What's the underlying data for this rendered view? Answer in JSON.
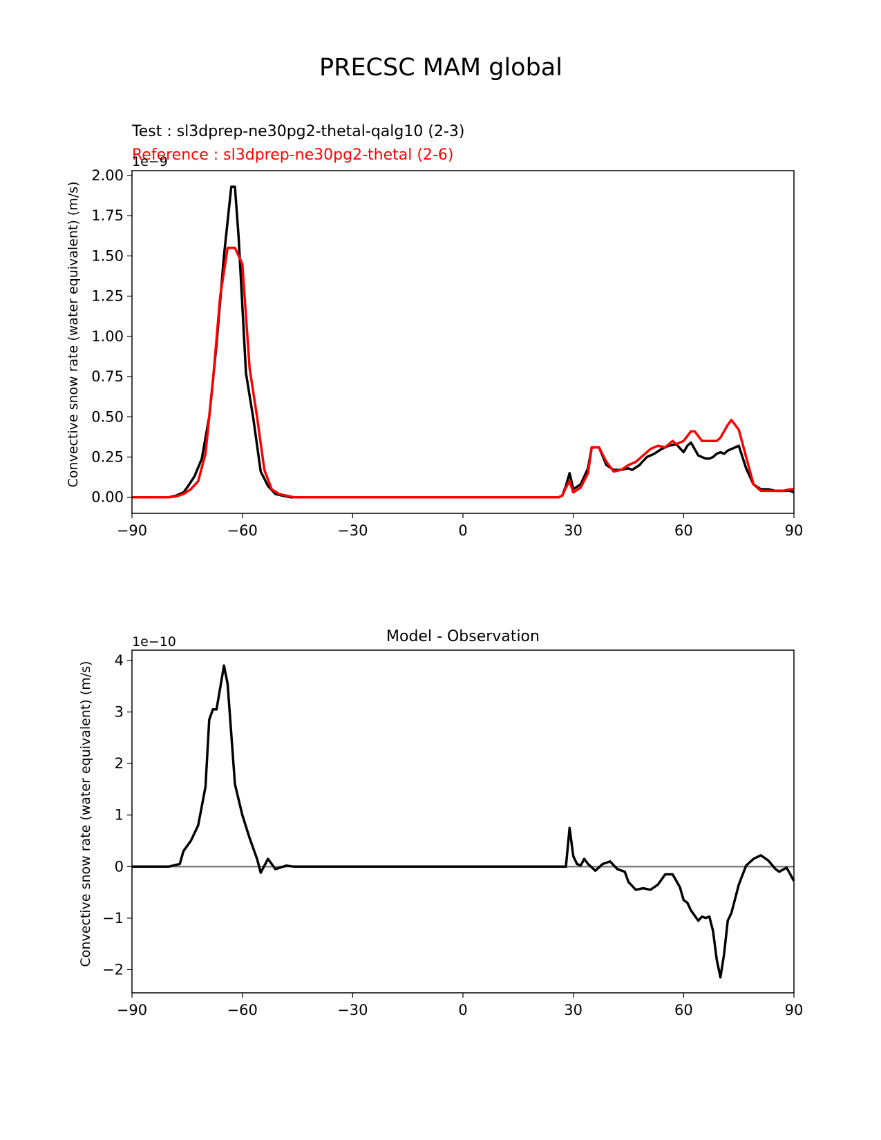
{
  "suptitle": "PRECSC MAM global",
  "chart_data": [
    {
      "type": "line",
      "test_label": "Test : sl3dprep-ne30pg2-thetal-qalg10 (2-3)",
      "reference_label": "Reference : sl3dprep-ne30pg2-thetal (2-6)",
      "offset_text": "1e−9",
      "ylabel": "Convective snow rate (water equivalent) (m/s)",
      "xlim": [
        -90,
        90
      ],
      "ylim": [
        -0.1,
        2.03
      ],
      "xticks": [
        -90,
        -60,
        -30,
        0,
        30,
        60,
        90
      ],
      "xtick_labels": [
        "−90",
        "−60",
        "−30",
        "0",
        "30",
        "60",
        "90"
      ],
      "yticks": [
        0,
        0.25,
        0.5,
        0.75,
        1.0,
        1.25,
        1.5,
        1.75,
        2.0
      ],
      "ytick_labels": [
        "0.00",
        "0.25",
        "0.50",
        "0.75",
        "1.00",
        "1.25",
        "1.50",
        "1.75",
        "2.00"
      ],
      "colors": {
        "test": "#000000",
        "reference": "#ff0000"
      },
      "series": [
        {
          "color": "#000000",
          "x": [
            -90,
            -80,
            -78,
            -76,
            -75,
            -73,
            -71,
            -69,
            -67,
            -65,
            -63,
            -62,
            -61,
            -59,
            -57,
            -55,
            -53,
            -51,
            -49,
            -47,
            -45,
            -40,
            0,
            26,
            27,
            28,
            29,
            30,
            32,
            34,
            35,
            37,
            39,
            41,
            43,
            45,
            46,
            48,
            50,
            52,
            54,
            56,
            58,
            60,
            61,
            62,
            64,
            66,
            67,
            68,
            69,
            70,
            71,
            72,
            73,
            75,
            77,
            79,
            81,
            83,
            85,
            87,
            89,
            90
          ],
          "y": [
            0,
            0,
            0.01,
            0.03,
            0.06,
            0.13,
            0.24,
            0.5,
            0.95,
            1.5,
            1.93,
            1.93,
            1.62,
            0.77,
            0.49,
            0.16,
            0.07,
            0.02,
            0.01,
            0,
            0,
            0,
            0,
            0,
            0.01,
            0.07,
            0.15,
            0.05,
            0.08,
            0.18,
            0.31,
            0.31,
            0.2,
            0.17,
            0.17,
            0.18,
            0.17,
            0.2,
            0.25,
            0.27,
            0.3,
            0.32,
            0.33,
            0.28,
            0.32,
            0.34,
            0.26,
            0.24,
            0.24,
            0.25,
            0.27,
            0.28,
            0.27,
            0.29,
            0.3,
            0.32,
            0.18,
            0.08,
            0.05,
            0.05,
            0.04,
            0.04,
            0.04,
            0.03
          ]
        },
        {
          "color": "#ff0000",
          "x": [
            -90,
            -80,
            -78,
            -76,
            -74,
            -72,
            -70,
            -68,
            -66,
            -64,
            -62,
            -60,
            -58,
            -56,
            -54,
            -52,
            -50,
            -48,
            -46,
            -40,
            0,
            26,
            27,
            28,
            29,
            30,
            32,
            34,
            35,
            37,
            39,
            41,
            43,
            45,
            47,
            49,
            51,
            53,
            55,
            57,
            58,
            60,
            62,
            63,
            65,
            67,
            69,
            70,
            72,
            73,
            75,
            77,
            79,
            81,
            83,
            85,
            87,
            89,
            90
          ],
          "y": [
            0,
            0,
            0.005,
            0.02,
            0.05,
            0.1,
            0.27,
            0.72,
            1.25,
            1.55,
            1.55,
            1.45,
            0.8,
            0.5,
            0.17,
            0.05,
            0.02,
            0.01,
            0,
            0,
            0,
            0,
            0.01,
            0.06,
            0.1,
            0.03,
            0.06,
            0.15,
            0.31,
            0.31,
            0.22,
            0.16,
            0.17,
            0.2,
            0.22,
            0.26,
            0.3,
            0.32,
            0.31,
            0.35,
            0.33,
            0.35,
            0.41,
            0.41,
            0.35,
            0.35,
            0.35,
            0.37,
            0.45,
            0.48,
            0.42,
            0.25,
            0.08,
            0.04,
            0.04,
            0.04,
            0.04,
            0.05,
            0.05
          ]
        }
      ]
    },
    {
      "type": "line",
      "title": "Model - Observation",
      "offset_text": "1e−10",
      "ylabel": "Convective snow rate (water equivalent) (m/s)",
      "xlim": [
        -90,
        90
      ],
      "ylim": [
        -2.45,
        4.2
      ],
      "xticks": [
        -90,
        -60,
        -30,
        0,
        30,
        60,
        90
      ],
      "xtick_labels": [
        "−90",
        "−60",
        "−30",
        "0",
        "30",
        "60",
        "90"
      ],
      "yticks": [
        -2,
        -1,
        0,
        1,
        2,
        3,
        4
      ],
      "ytick_labels": [
        "−2",
        "−1",
        "0",
        "1",
        "2",
        "3",
        "4"
      ],
      "zero_line_color": "#808080",
      "series": [
        {
          "color": "#000000",
          "x": [
            -90,
            -80,
            -77,
            -76,
            -74,
            -72,
            -70,
            -69,
            -68,
            -67,
            -65,
            -64,
            -62,
            -60,
            -58,
            -56,
            -55,
            -53,
            -51,
            -48,
            -46,
            -44,
            -40,
            0,
            28,
            29,
            30,
            31,
            32,
            33,
            34,
            36,
            38,
            40,
            42,
            44,
            45,
            47,
            49,
            51,
            53,
            55,
            57,
            59,
            60,
            61,
            62,
            64,
            65,
            66,
            67,
            68,
            69,
            70,
            71,
            72,
            73,
            75,
            77,
            79,
            81,
            83,
            85,
            86,
            88,
            90
          ],
          "y": [
            0,
            0,
            0.05,
            0.3,
            0.5,
            0.8,
            1.55,
            2.85,
            3.05,
            3.05,
            3.9,
            3.55,
            1.6,
            1.0,
            0.55,
            0.15,
            -0.12,
            0.15,
            -0.05,
            0.02,
            0.0,
            0.0,
            0.0,
            0.0,
            0.0,
            0.75,
            0.2,
            0.05,
            0.02,
            0.15,
            0.05,
            -0.08,
            0.05,
            0.1,
            -0.05,
            -0.1,
            -0.3,
            -0.45,
            -0.42,
            -0.45,
            -0.35,
            -0.15,
            -0.15,
            -0.4,
            -0.65,
            -0.7,
            -0.85,
            -1.05,
            -0.97,
            -1.0,
            -0.97,
            -1.25,
            -1.8,
            -2.15,
            -1.7,
            -1.05,
            -0.9,
            -0.35,
            0.02,
            0.15,
            0.22,
            0.12,
            -0.05,
            -0.1,
            -0.02,
            -0.28
          ]
        }
      ]
    }
  ]
}
